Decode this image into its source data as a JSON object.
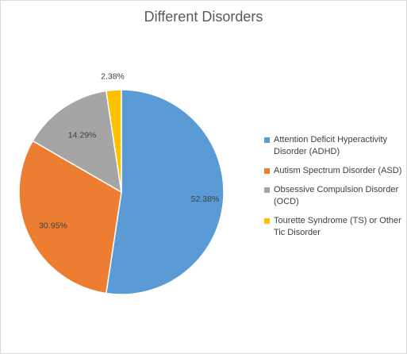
{
  "chart_data": {
    "type": "pie",
    "title": "Different Disorders",
    "series": [
      {
        "name": "",
        "slices": [
          {
            "label": "Attention Deficit Hyperactivity Disorder (ADHD)",
            "value": 52.38,
            "display": "52.38%",
            "color": "#5b9bd5"
          },
          {
            "label": "Autism Spectrum Disorder (ASD)",
            "value": 30.95,
            "display": "30.95%",
            "color": "#ed7d31"
          },
          {
            "label": "Obsessive Compulsion Disorder (OCD)",
            "value": 14.29,
            "display": "14.29%",
            "color": "#a5a5a5"
          },
          {
            "label": "Tourette Syndrome (TS) or Other Tic Disorder",
            "value": 2.38,
            "display": "2.38%",
            "color": "#ffc000"
          }
        ]
      }
    ],
    "legend_position": "right"
  }
}
